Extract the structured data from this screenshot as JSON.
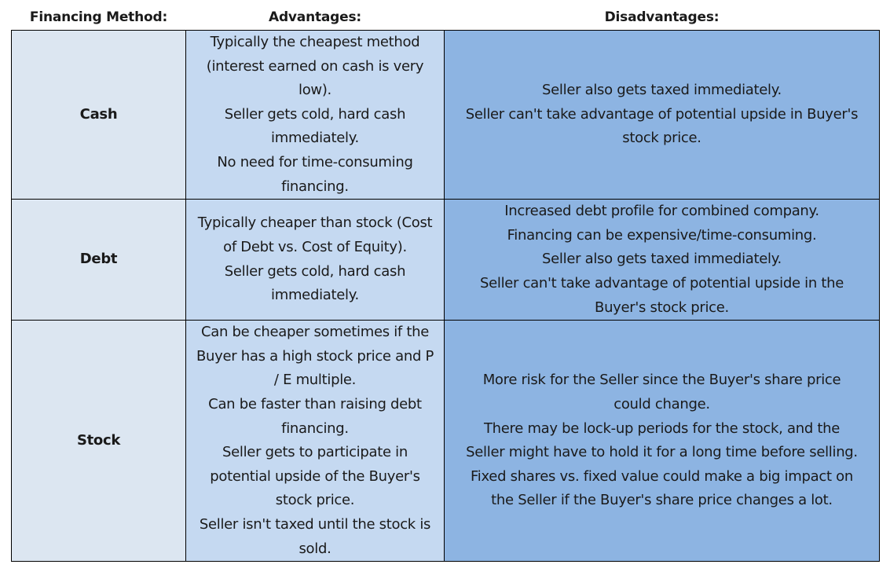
{
  "table": {
    "headers": {
      "method": "Financing Method:",
      "advantages": "Advantages:",
      "disadvantages": "Disadvantages:"
    },
    "rows": [
      {
        "method": "Cash",
        "advantages": [
          "Typically the cheapest method",
          "(interest earned on cash is very",
          "low).",
          "Seller gets cold, hard cash",
          "immediately.",
          "No need for time-consuming",
          "financing."
        ],
        "disadvantages": [
          "Seller also gets taxed immediately.",
          "Seller can't take advantage of potential upside in Buyer's",
          "stock price."
        ]
      },
      {
        "method": "Debt",
        "advantages": [
          "Typically cheaper than stock (Cost",
          "of Debt vs. Cost of Equity).",
          "Seller gets cold, hard cash",
          "immediately."
        ],
        "disadvantages": [
          "Increased debt profile for combined company.",
          "Financing can be expensive/time-consuming.",
          "Seller also gets taxed immediately.",
          "Seller can't take advantage of potential upside in the",
          "Buyer's stock price."
        ]
      },
      {
        "method": "Stock",
        "advantages": [
          "Can be cheaper sometimes if the",
          "Buyer has a high stock price and P",
          "/ E multiple.",
          "Can be faster than raising debt",
          "financing.",
          "Seller gets to participate in",
          "potential upside of the Buyer's",
          "stock price.",
          "Seller isn't taxed until the stock is",
          "sold."
        ],
        "disadvantages": [
          "More risk for the Seller since the Buyer's share price",
          "could change.",
          "There may be lock-up periods for the stock, and the",
          "Seller might have to hold it for a long time before selling.",
          "Fixed shares vs. fixed value could make a big impact on",
          "the Seller if the Buyer's share price changes a lot."
        ]
      }
    ]
  },
  "colors": {
    "method_bg": "#dce6f1",
    "advantages_bg": "#c5d9f1",
    "disadvantages_bg": "#8db4e2",
    "border": "#000000"
  }
}
